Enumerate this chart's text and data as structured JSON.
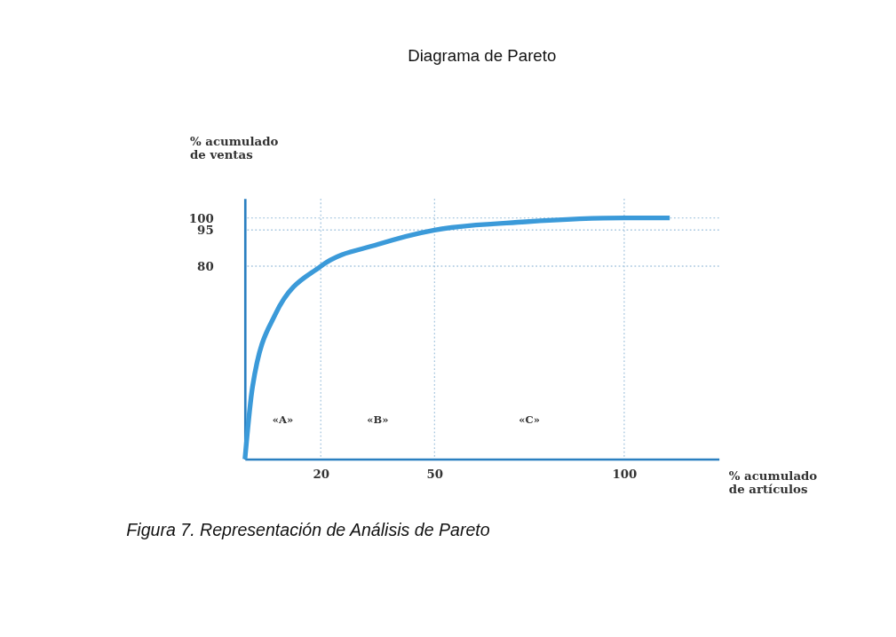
{
  "chart_data": {
    "type": "line",
    "title": "Diagrama de Pareto",
    "xlabel": "% acumulado\nde artículos",
    "ylabel": "% acumulado\nde ventas",
    "x": [
      0,
      2,
      8,
      20,
      35,
      50,
      74,
      100,
      112
    ],
    "series": [
      {
        "color": "#3b9ad9",
        "values": [
          0,
          30,
          60,
          80,
          89,
          95,
          98.4,
          100,
          100
        ]
      }
    ],
    "xlim": [
      0,
      125
    ],
    "ylim": [
      0,
      108
    ],
    "xticks": [
      20,
      50,
      100
    ],
    "yticks": [
      80,
      95,
      100
    ],
    "ref_lines": [
      {
        "axis": "x",
        "value": 20,
        "color": "#a9c8e0",
        "line_style": "dotted"
      },
      {
        "axis": "x",
        "value": 50,
        "color": "#a9c8e0",
        "line_style": "dotted"
      },
      {
        "axis": "x",
        "value": 100,
        "color": "#a9c8e0",
        "line_style": "dotted"
      },
      {
        "axis": "y",
        "value": 80,
        "color": "#a9c8e0",
        "line_style": "dotted"
      },
      {
        "axis": "y",
        "value": 95,
        "color": "#a9c8e0",
        "line_style": "dotted"
      },
      {
        "axis": "y",
        "value": 100,
        "color": "#a9c8e0",
        "line_style": "dotted"
      }
    ],
    "annotations": [
      "«A»",
      "«B»",
      "«C»",
      "Figura 7. Representación de Análisis de Pareto"
    ],
    "grid": false,
    "marker": "none",
    "line_style": "solid"
  }
}
